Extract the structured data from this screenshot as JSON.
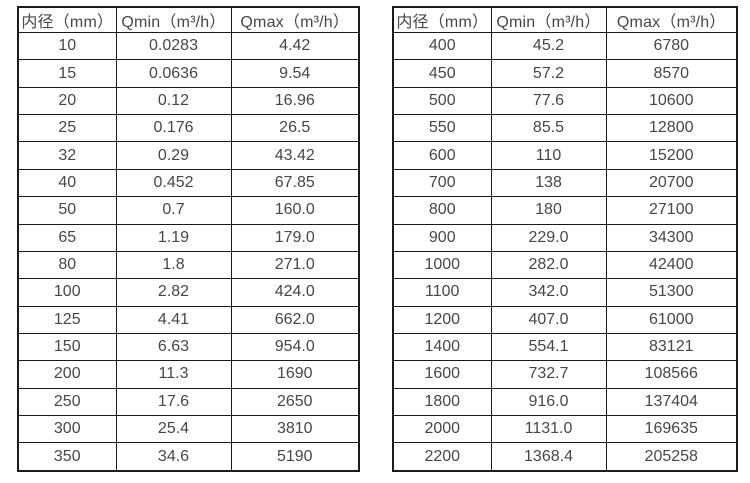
{
  "page": {
    "background": "#ffffff",
    "text_color": "#474747",
    "border_color": "#1a1a1a"
  },
  "tables": [
    {
      "name": "flow-spec-table-small-diameters",
      "headers": [
        "内径（mm）",
        "Qmin（m³/h）",
        "Qmax（m³/h）"
      ],
      "rows": [
        [
          "10",
          "0.0283",
          "4.42"
        ],
        [
          "15",
          "0.0636",
          "9.54"
        ],
        [
          "20",
          "0.12",
          "16.96"
        ],
        [
          "25",
          "0.176",
          "26.5"
        ],
        [
          "32",
          "0.29",
          "43.42"
        ],
        [
          "40",
          "0.452",
          "67.85"
        ],
        [
          "50",
          "0.7",
          "160.0"
        ],
        [
          "65",
          "1.19",
          "179.0"
        ],
        [
          "80",
          "1.8",
          "271.0"
        ],
        [
          "100",
          "2.82",
          "424.0"
        ],
        [
          "125",
          "4.41",
          "662.0"
        ],
        [
          "150",
          "6.63",
          "954.0"
        ],
        [
          "200",
          "11.3",
          "1690"
        ],
        [
          "250",
          "17.6",
          "2650"
        ],
        [
          "300",
          "25.4",
          "3810"
        ],
        [
          "350",
          "34.6",
          "5190"
        ]
      ]
    },
    {
      "name": "flow-spec-table-large-diameters",
      "headers": [
        "内径（mm）",
        "Qmin（m³/h）",
        "Qmax（m³/h）"
      ],
      "rows": [
        [
          "400",
          "45.2",
          "6780"
        ],
        [
          "450",
          "57.2",
          "8570"
        ],
        [
          "500",
          "77.6",
          "10600"
        ],
        [
          "550",
          "85.5",
          "12800"
        ],
        [
          "600",
          "110",
          "15200"
        ],
        [
          "700",
          "138",
          "20700"
        ],
        [
          "800",
          "180",
          "27100"
        ],
        [
          "900",
          "229.0",
          "34300"
        ],
        [
          "1000",
          "282.0",
          "42400"
        ],
        [
          "1100",
          "342.0",
          "51300"
        ],
        [
          "1200",
          "407.0",
          "61000"
        ],
        [
          "1400",
          "554.1",
          "83121"
        ],
        [
          "1600",
          "732.7",
          "108566"
        ],
        [
          "1800",
          "916.0",
          "137404"
        ],
        [
          "2000",
          "1131.0",
          "169635"
        ],
        [
          "2200",
          "1368.4",
          "205258"
        ]
      ]
    }
  ]
}
